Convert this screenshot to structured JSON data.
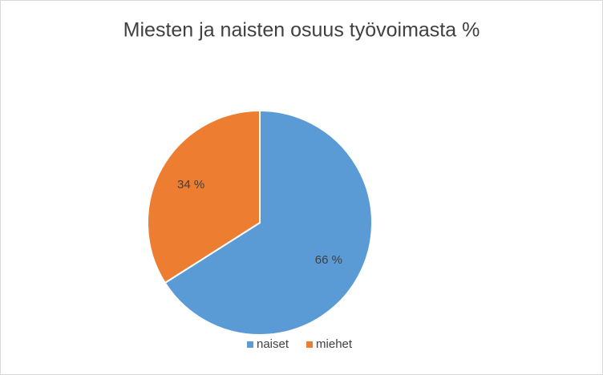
{
  "chart_data": {
    "type": "pie",
    "title": "Miesten ja naisten osuus työvoimasta %",
    "categories": [
      "naiset",
      "miehet"
    ],
    "values": [
      66,
      34
    ],
    "value_labels": [
      "66 %",
      "34 %"
    ],
    "colors": [
      "#5b9bd5",
      "#ed7d31"
    ],
    "legend": "bottom"
  }
}
